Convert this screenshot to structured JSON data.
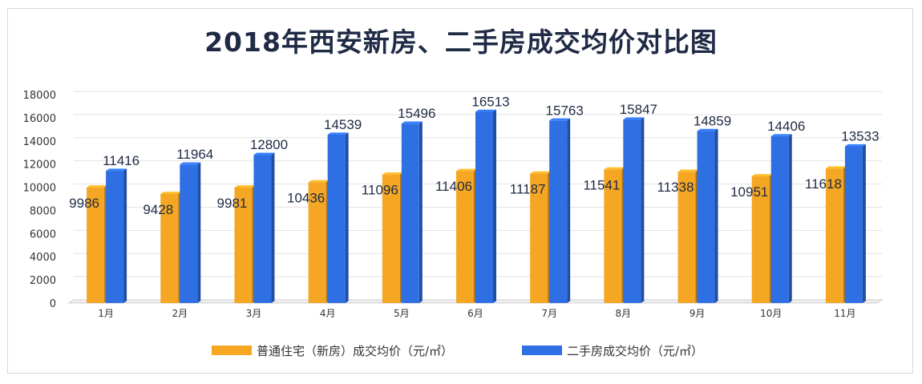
{
  "title": "2018年西安新房、二手房成交均价对比图",
  "chart_data": {
    "type": "bar",
    "title": "2018年西安新房、二手房成交均价对比图",
    "categories": [
      "1月",
      "2月",
      "3月",
      "4月",
      "5月",
      "6月",
      "7月",
      "8月",
      "9月",
      "10月",
      "11月"
    ],
    "ylim": [
      0,
      18000
    ],
    "yticks": [
      0,
      2000,
      4000,
      6000,
      8000,
      10000,
      12000,
      14000,
      16000,
      18000
    ],
    "grid": true,
    "legend_position": "bottom",
    "series": [
      {
        "name": "普通住宅（新房）成交均价（元/㎡）",
        "color": "#f5a623",
        "values": [
          9986,
          9428,
          9981,
          10436,
          11096,
          11406,
          11187,
          11541,
          11338,
          10951,
          11618
        ]
      },
      {
        "name": "二手房成交均价（元/㎡）",
        "color": "#2f6fe4",
        "values": [
          11416,
          11964,
          12800,
          14539,
          15496,
          16513,
          15763,
          15847,
          14859,
          14406,
          13533
        ]
      }
    ]
  }
}
